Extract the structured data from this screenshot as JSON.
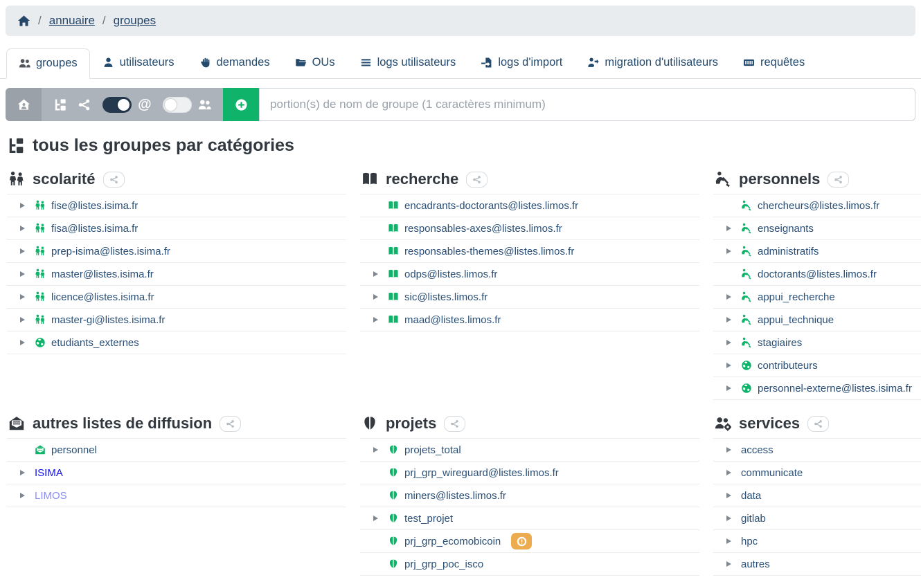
{
  "breadcrumb": {
    "home_icon": "home-icon",
    "separator": "/",
    "links": [
      {
        "label": "annuaire"
      },
      {
        "label": "groupes"
      }
    ]
  },
  "tabs": [
    {
      "label": "groupes",
      "slug": "groupes",
      "icon": "users-icon",
      "active": true
    },
    {
      "label": "utilisateurs",
      "slug": "utilisateurs",
      "icon": "user-icon",
      "active": false
    },
    {
      "label": "demandes",
      "slug": "demandes",
      "icon": "hand-icon",
      "active": false
    },
    {
      "label": "OUs",
      "slug": "ous",
      "icon": "folder-icon",
      "active": false
    },
    {
      "label": "logs utilisateurs",
      "slug": "logs-utilisateurs",
      "icon": "list-icon",
      "active": false
    },
    {
      "label": "logs d'import",
      "slug": "logs-import",
      "icon": "file-import-icon",
      "active": false
    },
    {
      "label": "migration d'utilisateurs",
      "slug": "migration-utilisateurs",
      "icon": "user-migration-icon",
      "active": false
    },
    {
      "label": "requêtes",
      "slug": "requetes",
      "icon": "keyboard-icon",
      "active": false
    }
  ],
  "toolbar": {
    "home_button_icon": "house-user-icon",
    "tree_button_icon": "sitemap-icon",
    "share_button_icon": "share-icon",
    "at_toggle": {
      "state": "on",
      "icon": "at-icon"
    },
    "users_toggle": {
      "state": "off",
      "icon": "users-icon"
    },
    "add_button_icon": "circle-plus-icon",
    "search_placeholder": "portion(s) de nom de groupe (1 caractères minimum)"
  },
  "page_title": "tous les groupes par catégories",
  "page_title_icon": "sitemap-icon",
  "colors": {
    "accent_green": "#10b36a",
    "badge_orange": "#ecab4f",
    "toggle_on_navy": "#24384e",
    "link_text_navy": "#2a4f77",
    "link_blue": "#1313e8",
    "link_periwinkle": "#8a8df2",
    "toolbar_gray_dark": "#9aa1a8",
    "toolbar_gray_light": "#adb3ba",
    "breadcrumb_bg": "#e9ecef"
  },
  "panels": [
    {
      "title": "scolarité",
      "slug": "scolarite",
      "icon": "children-icon",
      "items": [
        {
          "caret": true,
          "icon": "children-icon",
          "label": "fise@listes.isima.fr"
        },
        {
          "caret": true,
          "icon": "children-icon",
          "label": "fisa@listes.isima.fr"
        },
        {
          "caret": true,
          "icon": "children-icon",
          "label": "prep-isima@listes.isima.fr"
        },
        {
          "caret": true,
          "icon": "children-icon",
          "label": "master@listes.isima.fr"
        },
        {
          "caret": true,
          "icon": "children-icon",
          "label": "licence@listes.isima.fr"
        },
        {
          "caret": true,
          "icon": "children-icon",
          "label": "master-gi@listes.isima.fr"
        },
        {
          "caret": true,
          "icon": "globe-icon",
          "label": "etudiants_externes"
        }
      ]
    },
    {
      "title": "recherche",
      "slug": "recherche",
      "icon": "book-icon",
      "items": [
        {
          "caret": false,
          "icon": "book-icon",
          "label": "encadrants-doctorants@listes.limos.fr"
        },
        {
          "caret": false,
          "icon": "book-icon",
          "label": "responsables-axes@listes.limos.fr"
        },
        {
          "caret": false,
          "icon": "book-icon",
          "label": "responsables-themes@listes.limos.fr"
        },
        {
          "caret": true,
          "icon": "book-icon",
          "label": "odps@listes.limos.fr"
        },
        {
          "caret": true,
          "icon": "book-icon",
          "label": "sic@listes.limos.fr"
        },
        {
          "caret": true,
          "icon": "book-icon",
          "label": "maad@listes.limos.fr"
        }
      ]
    },
    {
      "title": "personnels",
      "slug": "personnels",
      "icon": "person-digging-icon",
      "items": [
        {
          "caret": false,
          "icon": "person-digging-icon",
          "label": "chercheurs@listes.limos.fr"
        },
        {
          "caret": true,
          "icon": "person-digging-icon",
          "label": "enseignants"
        },
        {
          "caret": true,
          "icon": "person-digging-icon",
          "label": "administratifs"
        },
        {
          "caret": false,
          "icon": "person-digging-icon",
          "label": "doctorants@listes.limos.fr"
        },
        {
          "caret": true,
          "icon": "person-digging-icon",
          "label": "appui_recherche"
        },
        {
          "caret": true,
          "icon": "person-digging-icon",
          "label": "appui_technique"
        },
        {
          "caret": true,
          "icon": "person-digging-icon",
          "label": "stagiaires"
        },
        {
          "caret": true,
          "icon": "globe-icon",
          "label": "contributeurs"
        },
        {
          "caret": true,
          "icon": "globe-icon",
          "label": "personnel-externe@listes.isima.fr"
        }
      ]
    },
    {
      "title": "autres listes de diffusion",
      "slug": "autres-listes-de-diffusion",
      "icon": "envelope-open-icon",
      "items": [
        {
          "caret": false,
          "icon": "envelope-open-text-icon",
          "label": "personnel"
        },
        {
          "caret": true,
          "icon": null,
          "label": "ISIMA",
          "color": "#1313e8"
        },
        {
          "caret": true,
          "icon": null,
          "label": "LIMOS",
          "color": "#8a8df2"
        }
      ]
    },
    {
      "title": "projets",
      "slug": "projets",
      "icon": "brain-icon",
      "items": [
        {
          "caret": true,
          "icon": "brain-icon",
          "label": "projets_total"
        },
        {
          "caret": false,
          "icon": "brain-icon",
          "label": "prj_grp_wireguard@listes.limos.fr"
        },
        {
          "caret": false,
          "icon": "brain-icon",
          "label": "miners@listes.limos.fr"
        },
        {
          "caret": true,
          "icon": "brain-icon",
          "label": "test_projet"
        },
        {
          "caret": false,
          "icon": "brain-icon",
          "label": "prj_grp_ecomobicoin",
          "badge": {
            "style": "warning",
            "icon": "circle-exclamation-icon"
          }
        },
        {
          "caret": false,
          "icon": "brain-icon",
          "label": "prj_grp_poc_isco"
        }
      ]
    },
    {
      "title": "services",
      "slug": "services",
      "icon": "users-gear-icon",
      "items": [
        {
          "caret": true,
          "icon": null,
          "label": "access"
        },
        {
          "caret": true,
          "icon": null,
          "label": "communicate"
        },
        {
          "caret": true,
          "icon": null,
          "label": "data"
        },
        {
          "caret": true,
          "icon": null,
          "label": "gitlab"
        },
        {
          "caret": true,
          "icon": null,
          "label": "hpc"
        },
        {
          "caret": true,
          "icon": null,
          "label": "autres"
        }
      ]
    }
  ]
}
